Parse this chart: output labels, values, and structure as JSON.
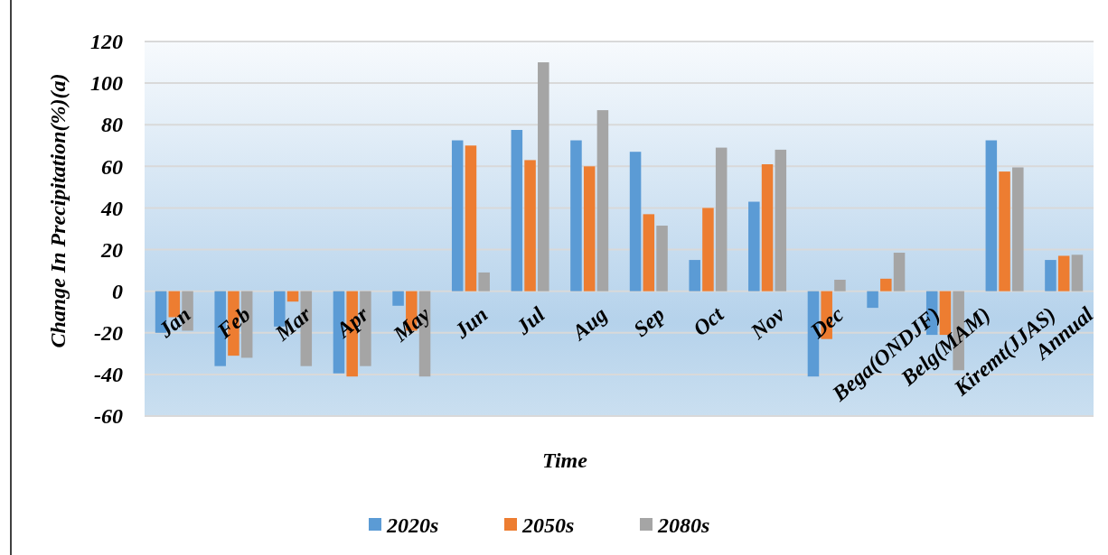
{
  "chart_data": {
    "type": "bar",
    "xlabel": "Time",
    "ylabel": "Change In Precipitation(%)(a)",
    "categories": [
      "Jan",
      "Feb",
      "Mar",
      "Apr",
      "May",
      "Jun",
      "Jul",
      "Aug",
      "Sep",
      "Oct",
      "Nov",
      "Dec",
      "Bega(ONDJF)",
      "Belg(MAM)",
      "Kiremt(JJAS)",
      "Annual"
    ],
    "series": [
      {
        "name": "2020s",
        "color": "#5b9bd5",
        "values": [
          -20,
          -36,
          -17,
          -39.5,
          -7,
          72.5,
          77.5,
          72.5,
          67,
          15,
          43,
          -41,
          -8,
          -21,
          72.5,
          15
        ]
      },
      {
        "name": "2050s",
        "color": "#ed7d31",
        "values": [
          -12.5,
          -31,
          -5,
          -41,
          -19,
          70,
          63,
          60,
          37,
          40,
          61,
          -23,
          6,
          -21,
          57.5,
          17
        ]
      },
      {
        "name": "2080s",
        "color": "#a5a5a5",
        "values": [
          -19,
          -32,
          -36,
          -36,
          -41,
          9,
          110,
          87,
          31.5,
          69,
          68,
          5.5,
          18.5,
          -38,
          59.5,
          17.5
        ]
      }
    ],
    "ylim": [
      -60,
      120
    ],
    "yticks": [
      -60,
      -40,
      -20,
      0,
      20,
      40,
      60,
      80,
      100,
      120
    ],
    "grid": "y",
    "legend": "bottom"
  }
}
